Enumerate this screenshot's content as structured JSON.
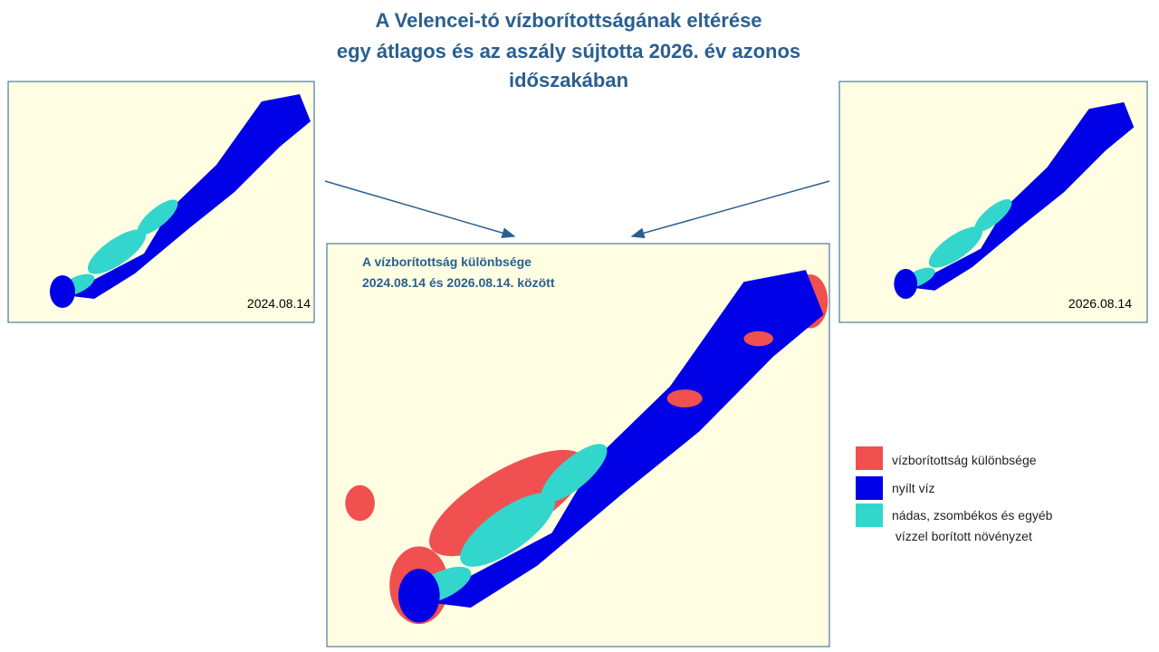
{
  "header": {
    "title_lines": [
      "A Velencei-tó vízborítottságának eltérése",
      "egy átlagos és az aszály sújtotta 2026. év azonos",
      "időszakában"
    ]
  },
  "maps": {
    "left": {
      "date": "2024.08.14"
    },
    "right": {
      "date": "2026.08.14"
    },
    "center": {
      "title_lines": [
        "A vízborítottság különbsége",
        "2024.08.14 és 2026.08.14. között"
      ]
    }
  },
  "legend": {
    "items": [
      "vízborítottság különbsége",
      "nyílt víz",
      "nádas, zsombékos és egyéb"
    ],
    "item_continuation": " vízzel borított növényzet"
  }
}
